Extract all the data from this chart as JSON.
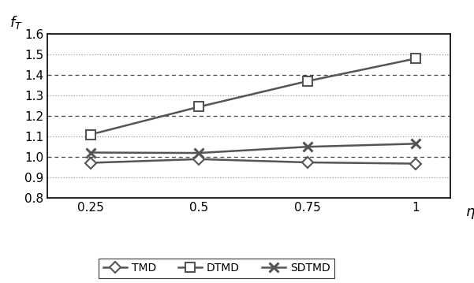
{
  "x": [
    0.25,
    0.5,
    0.75,
    1.0
  ],
  "TMD": [
    0.972,
    0.99,
    0.974,
    0.968
  ],
  "DTMD": [
    1.11,
    1.245,
    1.37,
    1.48
  ],
  "SDTMD": [
    1.022,
    1.02,
    1.05,
    1.065
  ],
  "line_color": "#555555",
  "title": "$f_T$",
  "xlabel": "$\\eta$",
  "ylim": [
    0.8,
    1.6
  ],
  "xlim": [
    0.15,
    1.08
  ],
  "yticks": [
    0.8,
    0.9,
    1.0,
    1.1,
    1.2,
    1.3,
    1.4,
    1.5,
    1.6
  ],
  "xticks": [
    0.25,
    0.5,
    0.75,
    1.0
  ],
  "xtick_labels": [
    "0.25",
    "0.5",
    "0.75",
    "1"
  ],
  "background_color": "#ffffff",
  "grid_color_dotted": "#999999",
  "grid_color_dashed": "#444444"
}
